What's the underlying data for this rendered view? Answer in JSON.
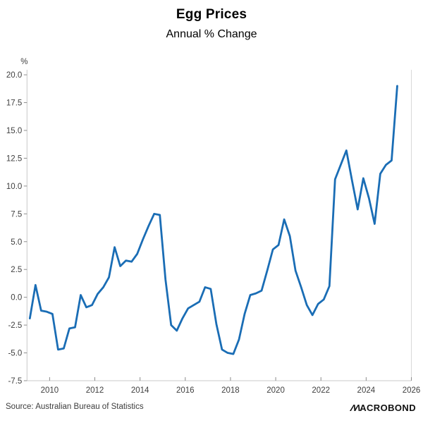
{
  "header": {
    "title": "Egg Prices",
    "subtitle": "Annual % Change"
  },
  "y_axis": {
    "unit": "%",
    "tick_labels": [
      "20.0",
      "17.5",
      "15.0",
      "12.5",
      "10.0",
      "7.5",
      "5.0",
      "2.5",
      "0.0",
      "-2.5",
      "-5.0",
      "-7.5"
    ],
    "tick_values": [
      20,
      17.5,
      15,
      12.5,
      10,
      7.5,
      5,
      2.5,
      0,
      -2.5,
      -5,
      -7.5
    ]
  },
  "x_axis": {
    "tick_labels": [
      "2010",
      "2012",
      "2014",
      "2016",
      "2018",
      "2020",
      "2022",
      "2024",
      "2026"
    ],
    "tick_values": [
      2010,
      2012,
      2014,
      2016,
      2018,
      2020,
      2022,
      2024,
      2026
    ]
  },
  "footer": {
    "source": "Source: Australian Bureau of Statistics",
    "logo": "MACROBOND"
  },
  "chart_data": {
    "type": "line",
    "title": "Egg Prices",
    "subtitle": "Annual % Change",
    "ylabel": "%",
    "xlabel": "",
    "frequency": "quarterly",
    "start_year": 2009,
    "start_quarter": 1,
    "xlim": [
      2009,
      2026
    ],
    "ylim": [
      -7.5,
      20.45
    ],
    "grid": false,
    "legend": "none",
    "line_color": "#1a6db5",
    "series": [
      {
        "name": "Egg Prices, Annual % Change",
        "values": [
          -1.9,
          1.1,
          -1.2,
          -1.3,
          -1.5,
          -4.7,
          -4.6,
          -2.8,
          -2.7,
          0.2,
          -0.9,
          -0.7,
          0.3,
          0.9,
          1.8,
          4.5,
          2.8,
          3.3,
          3.2,
          3.9,
          5.2,
          6.4,
          7.5,
          7.4,
          1.6,
          -2.5,
          -3.0,
          -1.9,
          -1.0,
          -0.7,
          -0.4,
          0.9,
          0.75,
          -2.4,
          -4.7,
          -5.0,
          -5.1,
          -3.8,
          -1.5,
          0.2,
          0.35,
          0.6,
          2.4,
          4.3,
          4.7,
          7.0,
          5.5,
          2.4,
          0.9,
          -0.7,
          -1.6,
          -0.6,
          -0.2,
          1.0,
          10.6,
          11.9,
          13.2,
          10.5,
          7.9,
          10.7,
          8.9,
          6.6,
          11.1,
          11.9,
          12.3,
          19.0
        ]
      }
    ]
  },
  "colors": {
    "line": "#1a6db5",
    "axis_frame": "#c9c9c9",
    "tick_mark": "#8c8c8c",
    "tick_text": "#404040",
    "right_frame": "#d9d9d9"
  }
}
